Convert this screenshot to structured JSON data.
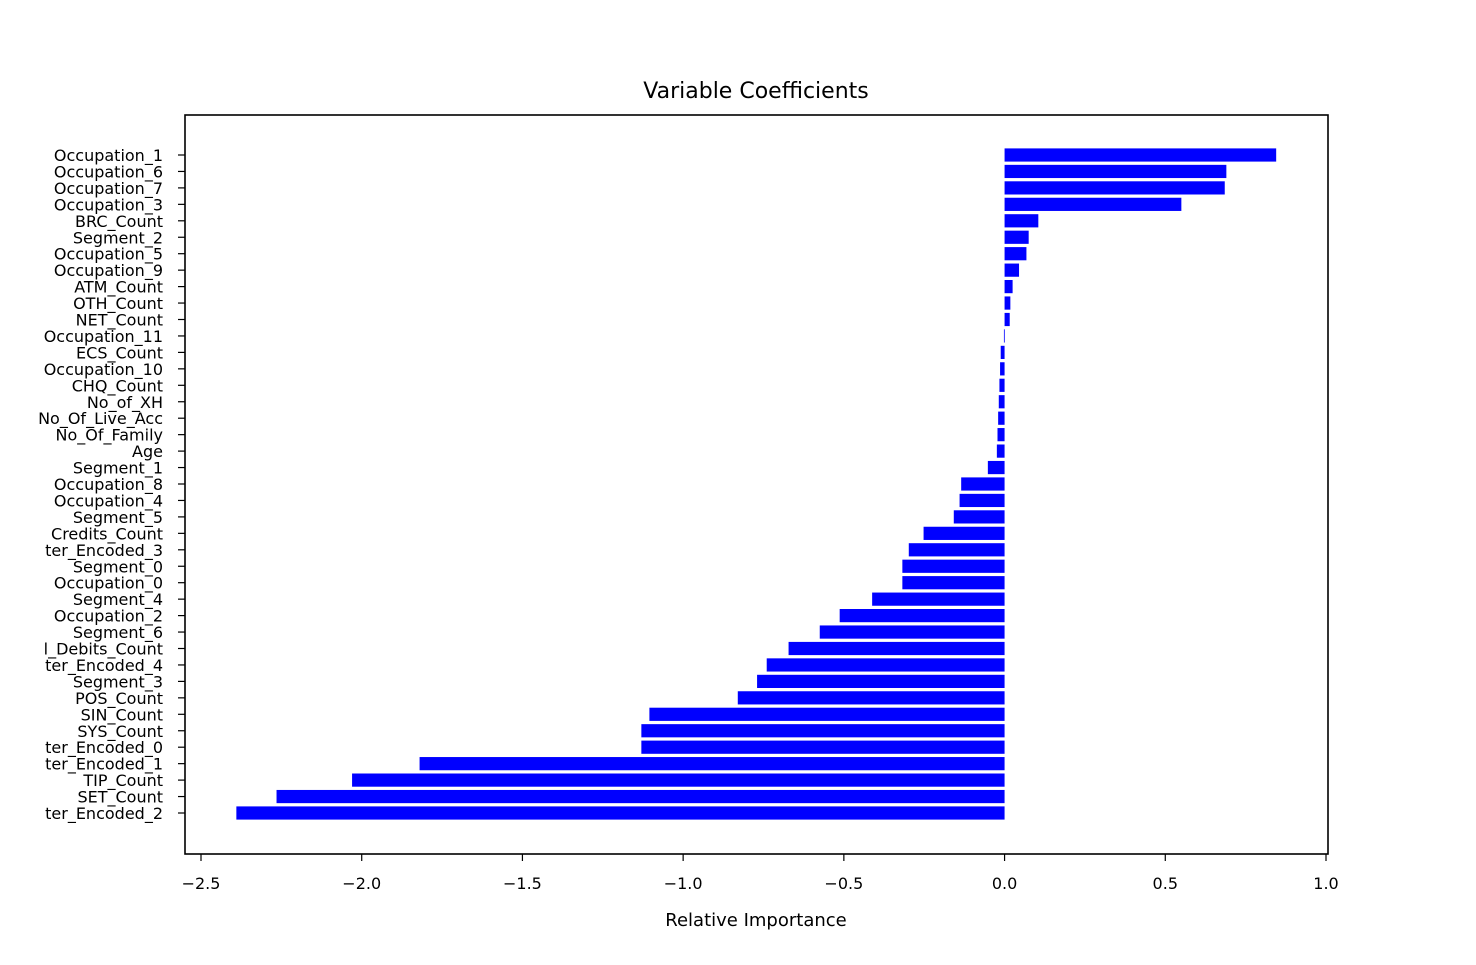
{
  "chart_data": {
    "type": "bar",
    "orientation": "horizontal",
    "title": "Variable Coefficients",
    "xlabel": "Relative Importance",
    "ylabel": "",
    "xlim": [
      -2.55,
      1.0
    ],
    "xticks": [
      -2.5,
      -2.0,
      -1.5,
      -1.0,
      -0.5,
      0.0,
      0.5,
      1.0
    ],
    "xtick_labels": [
      "−2.5",
      "−2.0",
      "−1.5",
      "−1.0",
      "−0.5",
      "0.0",
      "0.5",
      "1.0"
    ],
    "bar_color": "#0000ff",
    "grid": false,
    "legend": "none",
    "categories": [
      "Occupation_1",
      "Occupation_6",
      "Occupation_7",
      "Occupation_3",
      "BRC_Count",
      "Segment_2",
      "Occupation_5",
      "Occupation_9",
      "ATM_Count",
      "OTH_Count",
      "NET_Count",
      "Occupation_11",
      "ECS_Count",
      "Occupation_10",
      "CHQ_Count",
      "No_of_XH",
      "No_Of_Live_Acc",
      "No_Of_Family",
      "Age",
      "Segment_1",
      "Occupation_8",
      "Occupation_4",
      "Segment_5",
      "Credits_Count",
      "ter_Encoded_3",
      "Segment_0",
      "Occupation_0",
      "Segment_4",
      "Occupation_2",
      "Segment_6",
      "l_Debits_Count",
      "ter_Encoded_4",
      "Segment_3",
      "POS_Count",
      "SIN_Count",
      "SYS_Count",
      "ter_Encoded_0",
      "ter_Encoded_1",
      "TIP_Count",
      "SET_Count",
      "ter_Encoded_2"
    ],
    "values": [
      0.845,
      0.69,
      0.685,
      0.55,
      0.105,
      0.075,
      0.068,
      0.045,
      0.025,
      0.018,
      0.016,
      -0.002,
      -0.012,
      -0.014,
      -0.016,
      -0.018,
      -0.02,
      -0.022,
      -0.024,
      -0.052,
      -0.135,
      -0.14,
      -0.158,
      -0.252,
      -0.298,
      -0.318,
      -0.318,
      -0.412,
      -0.513,
      -0.575,
      -0.672,
      -0.74,
      -0.77,
      -0.83,
      -1.105,
      -1.13,
      -1.13,
      -1.82,
      -2.03,
      -2.265,
      -2.39
    ]
  }
}
